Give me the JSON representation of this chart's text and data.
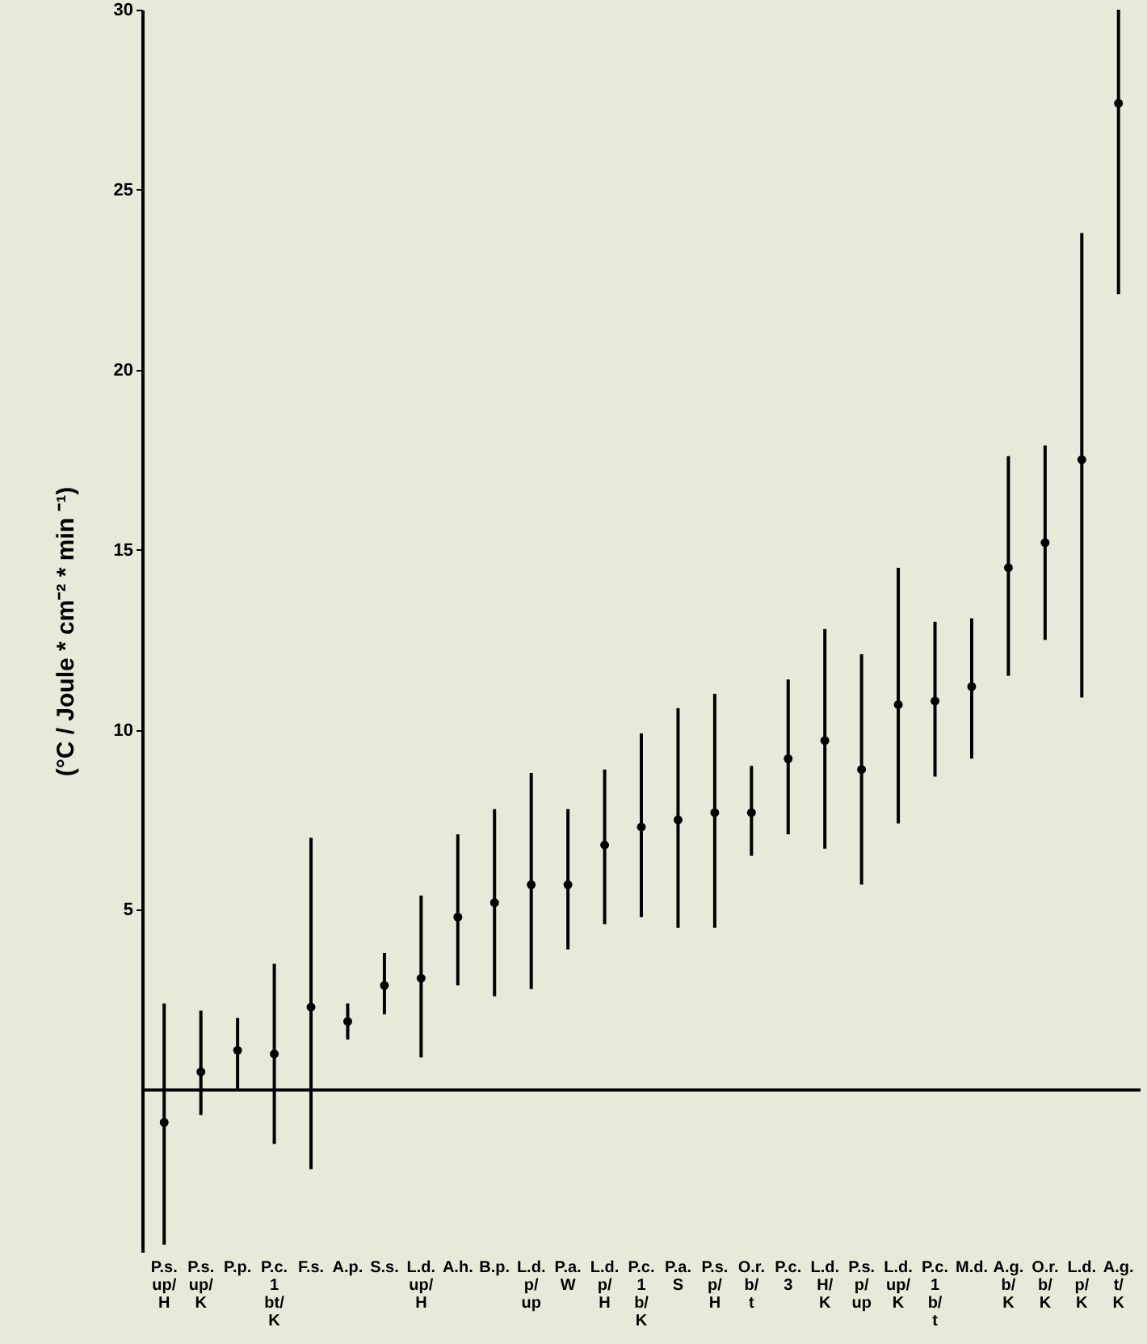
{
  "chart_data": {
    "type": "scatter",
    "ylabel": "(°C / Joule * cm⁻² * min ⁻¹)",
    "categories": [
      "P.s.\n\nup/\nH",
      "P.s.\n\nup/\nK",
      "P.p.",
      "P.c.\n1\nbt/\nK",
      "F.s.",
      "A.p.",
      "S.s.",
      "L.d.\n\nup/\nH",
      "A.h.",
      "B.p.",
      "L.d.\n\np/\nup",
      "P.a.\n\nW",
      "L.d.\n\np/\nH",
      "P.c.\n1\nb/\nK",
      "P.a.\n\nS",
      "P.s.\n\np/\nH",
      "O.r.\n\nb/\nt",
      "P.c.\n3",
      "L.d.\n\nH/\nK",
      "P.s.\n\np/\nup",
      "L.d.\n\nup/\nK",
      "P.c.\n1\nb/\nt",
      "M.d.",
      "A.g.\n\nb/\nK",
      "O.r.\n\nb/\nK",
      "L.d.\n\np/\nK",
      "A.g.\n\nt/\nK"
    ],
    "values": [
      -0.9,
      0.5,
      1.1,
      1.0,
      2.3,
      1.9,
      2.9,
      3.1,
      4.8,
      5.2,
      5.7,
      5.7,
      6.8,
      7.3,
      7.5,
      7.7,
      7.7,
      9.2,
      9.7,
      8.9,
      10.7,
      10.8,
      11.2,
      14.5,
      15.2,
      17.5,
      27.4
    ],
    "errors": [
      [
        -4.3,
        2.4
      ],
      [
        -0.7,
        2.2
      ],
      [
        0,
        2.0
      ],
      [
        -1.5,
        3.5
      ],
      [
        -2.2,
        7.0
      ],
      [
        1.4,
        2.4
      ],
      [
        2.1,
        3.8
      ],
      [
        0.9,
        5.4
      ],
      [
        2.9,
        7.1
      ],
      [
        2.6,
        7.8
      ],
      [
        2.8,
        8.8
      ],
      [
        3.9,
        7.8
      ],
      [
        4.6,
        8.9
      ],
      [
        4.8,
        9.9
      ],
      [
        4.5,
        10.6
      ],
      [
        4.5,
        11.0
      ],
      [
        6.5,
        9.0
      ],
      [
        7.1,
        11.4
      ],
      [
        6.7,
        12.8
      ],
      [
        5.7,
        12.1
      ],
      [
        7.4,
        14.5
      ],
      [
        8.7,
        13.0
      ],
      [
        9.2,
        13.1
      ],
      [
        11.5,
        17.6
      ],
      [
        12.5,
        17.9
      ],
      [
        10.9,
        23.8
      ],
      [
        22.1,
        30
      ]
    ],
    "color": "#000000",
    "marker": "circle",
    "ylim": [
      -4.5,
      30
    ],
    "yticks": [
      5,
      10,
      15,
      20,
      25,
      30
    ],
    "ref_lines": [
      {
        "axis": "y",
        "value": 0
      }
    ]
  }
}
